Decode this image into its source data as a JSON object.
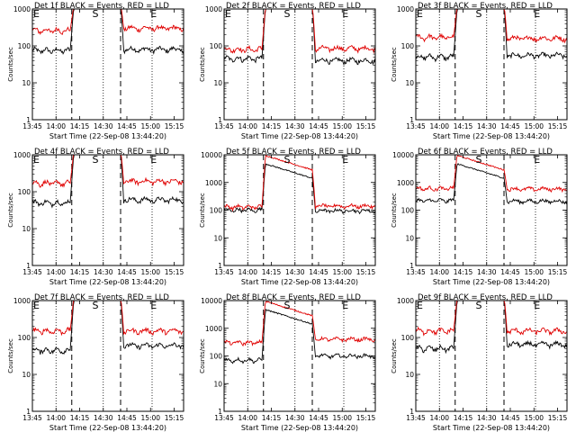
{
  "figure": {
    "start_time_label": "Start Time (22-Sep-08 13:44:20)",
    "ylabel": "Counts/sec",
    "series_colors": {
      "events": "#000000",
      "lld": "#e00000"
    }
  },
  "chart_data": [
    {
      "type": "line",
      "title": "Det 1f BLACK = Events, RED = LLD",
      "xlabel": "Start Time (22-Sep-08 13:44:20)",
      "ylabel": "Counts/sec",
      "yscale": "log",
      "ylim": [
        1,
        1000
      ],
      "yticks": [
        "1",
        "10",
        "100",
        "1000"
      ],
      "xticks": [
        "13:45",
        "14:00",
        "14:15",
        "14:30",
        "14:45",
        "15:00",
        "15:15"
      ],
      "x_range_min": [
        0,
        96
      ],
      "markers": [
        {
          "label": "E",
          "t": -6.5
        },
        {
          "label": "S",
          "t": 40
        },
        {
          "label": "E",
          "t": 77
        }
      ],
      "dashed_lines_min": [
        25,
        56
      ],
      "dotted_lines_min": [
        15,
        45,
        76
      ],
      "series": [
        {
          "key": "events",
          "pre": 75,
          "post": 80,
          "peak": 1000
        },
        {
          "key": "lld",
          "pre": 260,
          "post": 300,
          "peak": 1000
        }
      ]
    },
    {
      "type": "line",
      "title": "Det 2f BLACK = Events, RED = LLD",
      "xlabel": "Start Time (22-Sep-08 13:44:20)",
      "ylabel": "Counts/sec",
      "yscale": "log",
      "ylim": [
        1,
        1000
      ],
      "yticks": [
        "1",
        "10",
        "100",
        "1000"
      ],
      "xticks": [
        "13:45",
        "14:00",
        "14:15",
        "14:30",
        "14:45",
        "15:00",
        "15:15"
      ],
      "x_range_min": [
        0,
        96
      ],
      "markers": [
        {
          "label": "E",
          "t": -6.5
        },
        {
          "label": "S",
          "t": 40
        },
        {
          "label": "E",
          "t": 77
        }
      ],
      "dashed_lines_min": [
        25,
        56
      ],
      "dotted_lines_min": [
        15,
        45,
        76
      ],
      "series": [
        {
          "key": "events",
          "pre": 45,
          "post": 40,
          "peak": 1000
        },
        {
          "key": "lld",
          "pre": 80,
          "post": 85,
          "peak": 1000
        }
      ]
    },
    {
      "type": "line",
      "title": "Det 3f BLACK = Events, RED = LLD",
      "xlabel": "Start Time (22-Sep-08 13:44:20)",
      "ylabel": "Counts/sec",
      "yscale": "log",
      "ylim": [
        1,
        1000
      ],
      "yticks": [
        "1",
        "10",
        "100",
        "1000"
      ],
      "xticks": [
        "13:45",
        "14:00",
        "14:15",
        "14:30",
        "14:45",
        "15:00",
        "15:15"
      ],
      "x_range_min": [
        0,
        96
      ],
      "markers": [
        {
          "label": "E",
          "t": -6.5
        },
        {
          "label": "S",
          "t": 40
        },
        {
          "label": "E",
          "t": 77
        }
      ],
      "dashed_lines_min": [
        25,
        56
      ],
      "dotted_lines_min": [
        15,
        45,
        76
      ],
      "series": [
        {
          "key": "events",
          "pre": 50,
          "post": 55,
          "peak": 1000
        },
        {
          "key": "lld",
          "pre": 170,
          "post": 160,
          "peak": 1000
        }
      ]
    },
    {
      "type": "line",
      "title": "Det 4f BLACK = Events, RED = LLD",
      "xlabel": "Start Time (22-Sep-08 13:44:20)",
      "ylabel": "Counts/sec",
      "yscale": "log",
      "ylim": [
        1,
        1000
      ],
      "yticks": [
        "1",
        "10",
        "100",
        "1000"
      ],
      "xticks": [
        "13:45",
        "14:00",
        "14:15",
        "14:30",
        "14:45",
        "15:00",
        "15:15"
      ],
      "x_range_min": [
        0,
        96
      ],
      "markers": [
        {
          "label": "E",
          "t": -6.5
        },
        {
          "label": "S",
          "t": 40
        },
        {
          "label": "E",
          "t": 77
        }
      ],
      "dashed_lines_min": [
        25,
        56
      ],
      "dotted_lines_min": [
        15,
        45,
        76
      ],
      "series": [
        {
          "key": "events",
          "pre": 50,
          "post": 60,
          "peak": 1000
        },
        {
          "key": "lld",
          "pre": 170,
          "post": 190,
          "peak": 1000
        }
      ]
    },
    {
      "type": "line",
      "title": "Det 5f BLACK = Events, RED = LLD",
      "xlabel": "Start Time (22-Sep-08 13:44:20)",
      "ylabel": "Counts/sec",
      "yscale": "log",
      "ylim": [
        1,
        10000
      ],
      "yticks": [
        "1",
        "10",
        "100",
        "1000",
        "10000"
      ],
      "xticks": [
        "13:45",
        "14:00",
        "14:15",
        "14:30",
        "14:45",
        "15:00",
        "15:15"
      ],
      "x_range_min": [
        0,
        96
      ],
      "markers": [
        {
          "label": "S",
          "t": 40
        },
        {
          "label": "E",
          "t": 77
        }
      ],
      "dashed_lines_min": [
        25,
        56
      ],
      "dotted_lines_min": [
        15,
        45,
        76
      ],
      "series": [
        {
          "key": "events",
          "pre": 100,
          "post": 95,
          "peak": 5000
        },
        {
          "key": "lld",
          "pre": 130,
          "post": 140,
          "peak": 10000
        }
      ]
    },
    {
      "type": "line",
      "title": "Det 6f BLACK = Events, RED = LLD",
      "xlabel": "Start Time (22-Sep-08 13:44:20)",
      "ylabel": "Counts/sec",
      "yscale": "log",
      "ylim": [
        1,
        10000
      ],
      "yticks": [
        "1",
        "10",
        "100",
        "1000",
        "10000"
      ],
      "xticks": [
        "13:45",
        "14:00",
        "14:15",
        "14:30",
        "14:45",
        "15:00",
        "15:15"
      ],
      "x_range_min": [
        0,
        96
      ],
      "markers": [
        {
          "label": "S",
          "t": 40
        },
        {
          "label": "E",
          "t": 77
        }
      ],
      "dashed_lines_min": [
        25,
        56
      ],
      "dotted_lines_min": [
        15,
        45,
        76
      ],
      "series": [
        {
          "key": "events",
          "pre": 220,
          "post": 210,
          "peak": 5000
        },
        {
          "key": "lld",
          "pre": 600,
          "post": 580,
          "peak": 10000
        }
      ]
    },
    {
      "type": "line",
      "title": "Det 7f BLACK = Events, RED = LLD",
      "xlabel": "Start Time (22-Sep-08 13:44:20)",
      "ylabel": "Counts/sec",
      "yscale": "log",
      "ylim": [
        1,
        1000
      ],
      "yticks": [
        "1",
        "10",
        "100",
        "1000"
      ],
      "xticks": [
        "13:45",
        "14:00",
        "14:15",
        "14:30",
        "14:45",
        "15:00",
        "15:15"
      ],
      "x_range_min": [
        0,
        96
      ],
      "markers": [
        {
          "label": "E",
          "t": -6.5
        },
        {
          "label": "S",
          "t": 40
        },
        {
          "label": "E",
          "t": 77
        }
      ],
      "dashed_lines_min": [
        25,
        56
      ],
      "dotted_lines_min": [
        15,
        45,
        76
      ],
      "series": [
        {
          "key": "events",
          "pre": 45,
          "post": 60,
          "peak": 1000
        },
        {
          "key": "lld",
          "pre": 150,
          "post": 150,
          "peak": 1000
        }
      ]
    },
    {
      "type": "line",
      "title": "Det 8f BLACK = Events, RED = LLD",
      "xlabel": "Start Time (22-Sep-08 13:44:20)",
      "ylabel": "Counts/sec",
      "yscale": "log",
      "ylim": [
        1,
        10000
      ],
      "yticks": [
        "1",
        "10",
        "100",
        "1000",
        "10000"
      ],
      "xticks": [
        "13:45",
        "14:00",
        "14:15",
        "14:30",
        "14:45",
        "15:00",
        "15:15"
      ],
      "x_range_min": [
        0,
        96
      ],
      "markers": [
        {
          "label": "S",
          "t": 40
        },
        {
          "label": "E",
          "t": 77
        }
      ],
      "dashed_lines_min": [
        25,
        56
      ],
      "dotted_lines_min": [
        15,
        45,
        76
      ],
      "series": [
        {
          "key": "events",
          "pre": 70,
          "post": 100,
          "peak": 5000
        },
        {
          "key": "lld",
          "pre": 300,
          "post": 400,
          "peak": 10000
        }
      ]
    },
    {
      "type": "line",
      "title": "Det 9f BLACK = Events, RED = LLD",
      "xlabel": "Start Time (22-Sep-08 13:44:20)",
      "ylabel": "Counts/sec",
      "yscale": "log",
      "ylim": [
        1,
        1000
      ],
      "yticks": [
        "1",
        "10",
        "100",
        "1000"
      ],
      "xticks": [
        "13:45",
        "14:00",
        "14:15",
        "14:30",
        "14:45",
        "15:00",
        "15:15"
      ],
      "x_range_min": [
        0,
        96
      ],
      "markers": [
        {
          "label": "E",
          "t": -6.5
        },
        {
          "label": "S",
          "t": 40
        },
        {
          "label": "E",
          "t": 77
        }
      ],
      "dashed_lines_min": [
        25,
        56
      ],
      "dotted_lines_min": [
        15,
        45,
        76
      ],
      "series": [
        {
          "key": "events",
          "pre": 50,
          "post": 65,
          "peak": 1000
        },
        {
          "key": "lld",
          "pre": 150,
          "post": 150,
          "peak": 1000
        }
      ]
    }
  ]
}
